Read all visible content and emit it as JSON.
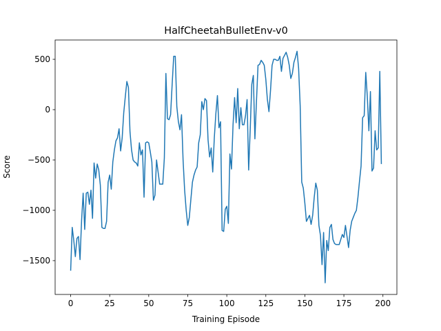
{
  "chart_data": {
    "type": "line",
    "title": "HalfCheetahBulletEnv-v0",
    "x_label": "Training Episode",
    "y_label": "Score",
    "color": "#1f77b4",
    "x": [
      0,
      1,
      2,
      3,
      4,
      5,
      6,
      7,
      8,
      9,
      10,
      11,
      12,
      13,
      14,
      15,
      16,
      17,
      18,
      19,
      20,
      21,
      22,
      23,
      24,
      25,
      26,
      27,
      28,
      29,
      30,
      31,
      32,
      33,
      34,
      35,
      36,
      37,
      38,
      39,
      40,
      41,
      42,
      43,
      44,
      45,
      46,
      47,
      48,
      49,
      50,
      51,
      52,
      53,
      54,
      55,
      56,
      57,
      58,
      59,
      60,
      61,
      62,
      63,
      64,
      65,
      66,
      67,
      68,
      69,
      70,
      71,
      72,
      73,
      74,
      75,
      76,
      77,
      78,
      79,
      80,
      81,
      82,
      83,
      84,
      85,
      86,
      87,
      88,
      89,
      90,
      91,
      92,
      93,
      94,
      95,
      96,
      97,
      98,
      99,
      100,
      101,
      102,
      103,
      104,
      105,
      106,
      107,
      108,
      109,
      110,
      111,
      112,
      113,
      114,
      115,
      116,
      117,
      118,
      119,
      120,
      121,
      122,
      123,
      124,
      125,
      126,
      127,
      128,
      129,
      130,
      131,
      132,
      133,
      134,
      135,
      136,
      137,
      138,
      139,
      140,
      141,
      142,
      143,
      144,
      145,
      146,
      147,
      148,
      149,
      150,
      151,
      152,
      153,
      154,
      155,
      156,
      157,
      158,
      159,
      160,
      161,
      162,
      163,
      164,
      165,
      166,
      167,
      168,
      169,
      170,
      171,
      172,
      173,
      174,
      175,
      176,
      177,
      178,
      179,
      180,
      181,
      182,
      183,
      184,
      185,
      186,
      187,
      188,
      189,
      190,
      191,
      192,
      193,
      194,
      195,
      196,
      197,
      198,
      199
    ],
    "values": [
      -1600,
      -1170,
      -1300,
      -1460,
      -1280,
      -1260,
      -1490,
      -1100,
      -830,
      -1190,
      -830,
      -820,
      -940,
      -800,
      -1080,
      -530,
      -680,
      -540,
      -600,
      -750,
      -1170,
      -1180,
      -1180,
      -1110,
      -720,
      -650,
      -790,
      -520,
      -400,
      -310,
      -280,
      -190,
      -410,
      -280,
      -30,
      130,
      280,
      220,
      -220,
      -400,
      -500,
      -520,
      -530,
      -560,
      -330,
      -450,
      -400,
      -870,
      -330,
      -320,
      -330,
      -420,
      -520,
      -900,
      -850,
      -500,
      -620,
      -740,
      -740,
      -740,
      -480,
      360,
      -90,
      -100,
      -50,
      250,
      530,
      530,
      30,
      -120,
      -200,
      -50,
      -500,
      -800,
      -1000,
      -1150,
      -1070,
      -890,
      -720,
      -650,
      -600,
      -570,
      -330,
      -250,
      80,
      0,
      110,
      90,
      -300,
      -470,
      -380,
      -620,
      -280,
      -40,
      140,
      -180,
      -120,
      -1200,
      -1210,
      -990,
      -960,
      -1130,
      -440,
      -590,
      -150,
      120,
      -130,
      210,
      -190,
      20,
      -150,
      -150,
      -60,
      100,
      -600,
      -200,
      250,
      340,
      -290,
      80,
      440,
      450,
      490,
      470,
      440,
      300,
      100,
      -20,
      190,
      440,
      500,
      500,
      490,
      490,
      530,
      380,
      510,
      540,
      570,
      520,
      440,
      310,
      360,
      470,
      520,
      580,
      410,
      40,
      -720,
      -780,
      -930,
      -1110,
      -1080,
      -1050,
      -1140,
      -1050,
      -870,
      -730,
      -800,
      -1150,
      -1250,
      -1540,
      -1220,
      -1720,
      -1300,
      -1400,
      -1170,
      -1140,
      -1290,
      -1330,
      -1340,
      -1340,
      -1340,
      -1290,
      -1240,
      -1270,
      -1150,
      -1260,
      -1370,
      -1200,
      -1110,
      -1070,
      -1030,
      -1000,
      -870,
      -710,
      -560,
      -80,
      -60,
      370,
      130,
      -210,
      180,
      -610,
      -580,
      -210,
      -400,
      -380,
      380,
      -540
    ],
    "xlim": [
      -9.95,
      208.95
    ],
    "xticks": [
      0,
      25,
      50,
      75,
      100,
      125,
      150,
      175,
      200
    ],
    "ylim": [
      -1836,
      692
    ],
    "yticks": [
      {
        "value": -1500,
        "label": "−1500"
      },
      {
        "value": -1000,
        "label": "−1000"
      },
      {
        "value": -500,
        "label": "−500"
      },
      0,
      500
    ]
  }
}
